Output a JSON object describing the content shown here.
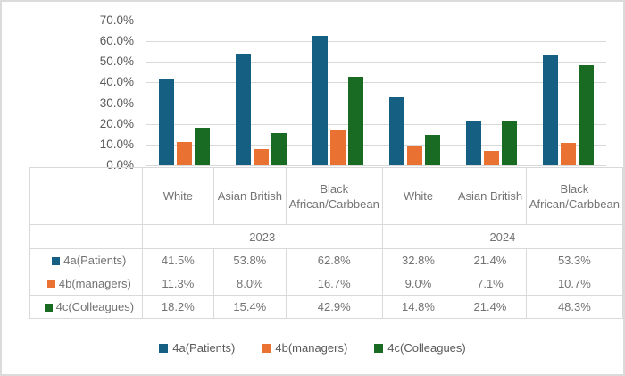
{
  "frame": {
    "background": "#FFFFFF",
    "border_color": "#DBDBDB",
    "gridline_color": "#D9D9D9",
    "axis_text_color": "#595959",
    "table_text_color": "#737373"
  },
  "chart_data": {
    "type": "bar",
    "title": "",
    "xlabel": "",
    "ylabel": "",
    "grid": true,
    "data_table_shown": true,
    "y_axis": {
      "min": 0,
      "max": 70,
      "step": 10,
      "unit": "%",
      "tick_labels": [
        "70.0%",
        "60.0%",
        "50.0%",
        "40.0%",
        "30.0%",
        "20.0%",
        "10.0%",
        "0.0%"
      ]
    },
    "categories": [
      "White",
      "Asian British",
      "Black African/Carbbean",
      "White",
      "Asian British",
      "Black African/Carbbean"
    ],
    "year_groups": [
      {
        "label": "2023",
        "span": 3
      },
      {
        "label": "2024",
        "span": 3
      }
    ],
    "series": [
      {
        "name": "4a(Patients)",
        "color": "#156082",
        "values": [
          41.5,
          53.8,
          62.8,
          32.8,
          21.4,
          53.3
        ],
        "value_labels": [
          "41.5%",
          "53.8%",
          "62.8%",
          "32.8%",
          "21.4%",
          "53.3%"
        ]
      },
      {
        "name": "4b(managers)",
        "color": "#E97132",
        "values": [
          11.3,
          8.0,
          16.7,
          9.0,
          7.1,
          10.7
        ],
        "value_labels": [
          "11.3%",
          "8.0%",
          "16.7%",
          "9.0%",
          "7.1%",
          "10.7%"
        ]
      },
      {
        "name": "4c(Colleagues)",
        "color": "#196B24",
        "values": [
          18.2,
          15.4,
          42.9,
          14.8,
          21.4,
          48.3
        ],
        "value_labels": [
          "18.2%",
          "15.4%",
          "42.9%",
          "14.8%",
          "21.4%",
          "48.3%"
        ]
      }
    ],
    "legend": {
      "position": "bottom",
      "entries": [
        "4a(Patients)",
        "4b(managers)",
        "4c(Colleagues)"
      ]
    }
  }
}
